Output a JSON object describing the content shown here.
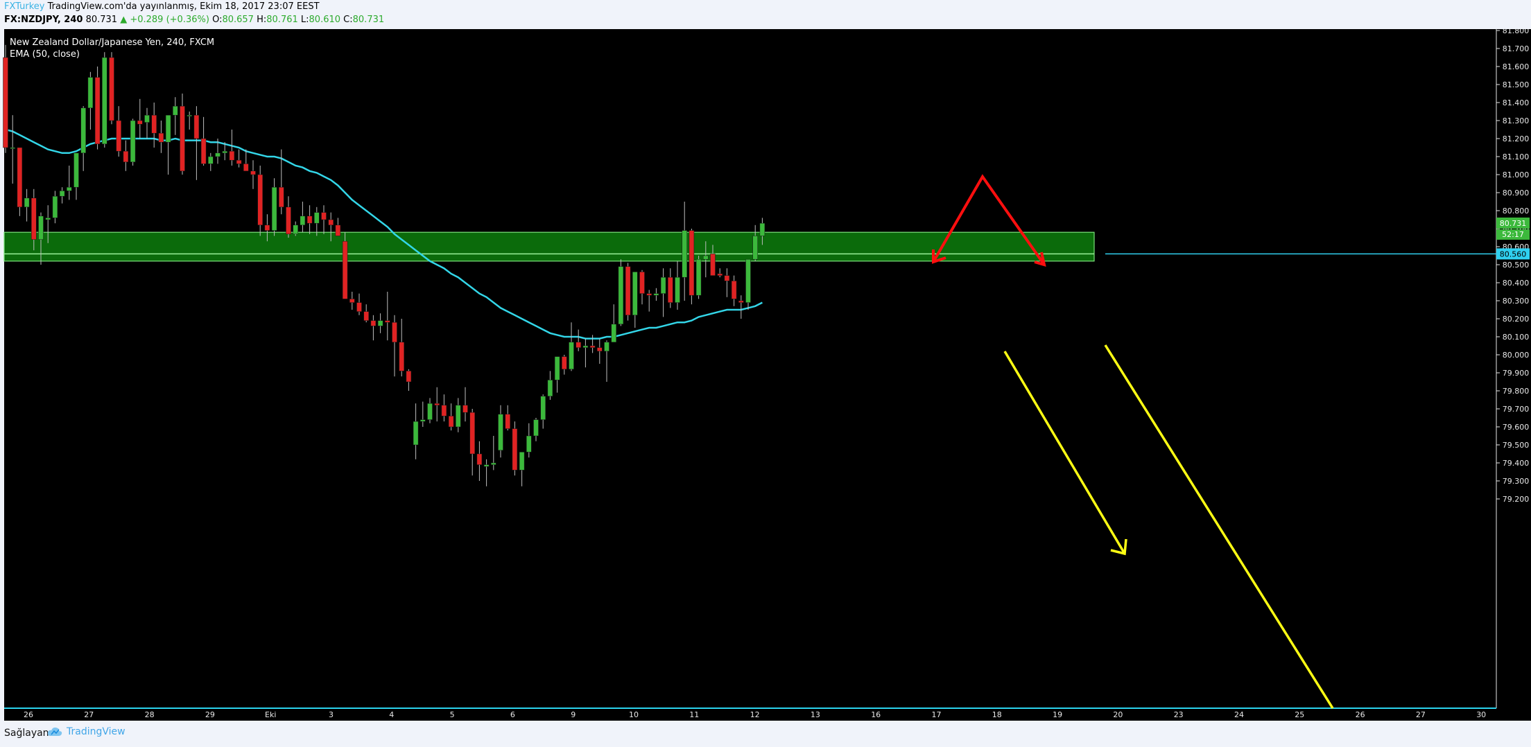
{
  "header": {
    "author": "FXTurkey",
    "published": "TradingView.com'da yayınlanmış, Ekim 18, 2017 23:07 EEST",
    "symbol": "FX:NZDJPY, 240",
    "last": "80.731",
    "change": "▲ +0.289 (+0.36%)",
    "o_label": "O:",
    "o": "80.657",
    "h_label": "H:",
    "h": "80.761",
    "l_label": "L:",
    "l": "80.610",
    "c_label": "C:",
    "c": "80.731"
  },
  "footer": {
    "source_label": "Sağlayan:",
    "brand": "TradingView"
  },
  "colors": {
    "background": "#000000",
    "up": "#3cb93c",
    "down": "#e02323",
    "ema": "#33d6e8",
    "zone_fill": "#0b6b0b",
    "zone_edge": "#7ce37c",
    "yellow": "#ffff14",
    "red_arrow": "#ff0f0f",
    "hline": "#2fd0f0"
  },
  "chart_data": {
    "type": "candlestick",
    "title": "New Zealand Dollar/Japanese Yen, 240, FXCM",
    "indicator": "EMA (50, close)",
    "ylim": [
      79.13,
      81.83
    ],
    "y_ticks": [
      "81.800",
      "81.700",
      "81.600",
      "81.500",
      "81.400",
      "81.300",
      "81.200",
      "81.100",
      "81.000",
      "80.900",
      "80.800",
      "80.700",
      "80.600",
      "80.500",
      "80.400",
      "80.300",
      "80.200",
      "80.100",
      "80.000",
      "79.900",
      "79.800",
      "79.700",
      "79.600",
      "79.500",
      "79.400",
      "79.300",
      "79.200"
    ],
    "x_ticks": [
      "26",
      "27",
      "28",
      "29",
      "Eki",
      "3",
      "4",
      "5",
      "6",
      "9",
      "10",
      "11",
      "12",
      "13",
      "16",
      "17",
      "18",
      "19",
      "20",
      "23",
      "24",
      "25",
      "26",
      "27",
      "30"
    ],
    "last_price_label": "80.731",
    "countdown_label": "52:17",
    "hline_label": "80.560",
    "candles": [
      [
        81.65,
        81.72,
        81.12,
        81.15
      ],
      [
        81.15,
        81.33,
        80.95,
        81.15
      ],
      [
        81.15,
        81.15,
        80.77,
        80.82
      ],
      [
        80.82,
        80.92,
        80.74,
        80.87
      ],
      [
        80.87,
        80.92,
        80.58,
        80.64
      ],
      [
        80.64,
        80.79,
        80.5,
        80.77
      ],
      [
        80.75,
        80.83,
        80.62,
        80.76
      ],
      [
        80.76,
        80.91,
        80.73,
        80.88
      ],
      [
        80.88,
        80.93,
        80.84,
        80.91
      ],
      [
        80.91,
        81.05,
        80.86,
        80.93
      ],
      [
        80.93,
        81.12,
        80.86,
        81.12
      ],
      [
        81.12,
        81.38,
        81.02,
        81.37
      ],
      [
        81.37,
        81.57,
        81.25,
        81.54
      ],
      [
        81.54,
        81.6,
        81.14,
        81.17
      ],
      [
        81.17,
        81.68,
        81.15,
        81.65
      ],
      [
        81.65,
        81.68,
        81.28,
        81.3
      ],
      [
        81.3,
        81.38,
        81.1,
        81.13
      ],
      [
        81.13,
        81.19,
        81.02,
        81.07
      ],
      [
        81.07,
        81.31,
        81.05,
        81.3
      ],
      [
        81.3,
        81.42,
        81.2,
        81.28
      ],
      [
        81.29,
        81.37,
        81.2,
        81.33
      ],
      [
        81.33,
        81.4,
        81.15,
        81.23
      ],
      [
        81.23,
        81.3,
        81.12,
        81.18
      ],
      [
        81.18,
        81.33,
        81.0,
        81.33
      ],
      [
        81.33,
        81.43,
        81.22,
        81.38
      ],
      [
        81.38,
        81.45,
        81.0,
        81.02
      ],
      [
        81.33,
        81.35,
        81.25,
        81.33
      ],
      [
        81.33,
        81.38,
        80.97,
        81.2
      ],
      [
        81.2,
        81.32,
        81.05,
        81.06
      ],
      [
        81.06,
        81.12,
        81.02,
        81.1
      ],
      [
        81.1,
        81.2,
        81.06,
        81.12
      ],
      [
        81.12,
        81.18,
        81.08,
        81.13
      ],
      [
        81.13,
        81.25,
        81.05,
        81.08
      ],
      [
        81.08,
        81.14,
        81.04,
        81.06
      ],
      [
        81.06,
        81.14,
        81.03,
        81.02
      ],
      [
        81.02,
        81.08,
        80.92,
        81.0
      ],
      [
        81.0,
        81.05,
        80.66,
        80.72
      ],
      [
        80.72,
        80.78,
        80.63,
        80.69
      ],
      [
        80.69,
        80.98,
        80.66,
        80.93
      ],
      [
        80.93,
        81.14,
        80.78,
        80.82
      ],
      [
        80.82,
        80.88,
        80.65,
        80.67
      ],
      [
        80.67,
        80.74,
        80.66,
        80.72
      ],
      [
        80.72,
        80.85,
        80.68,
        80.77
      ],
      [
        80.77,
        80.83,
        80.67,
        80.73
      ],
      [
        80.73,
        80.82,
        80.66,
        80.79
      ],
      [
        80.79,
        80.83,
        80.67,
        80.75
      ],
      [
        80.75,
        80.79,
        80.63,
        80.72
      ],
      [
        80.72,
        80.76,
        80.66,
        80.66
      ],
      [
        80.63,
        80.68,
        80.31,
        80.31
      ],
      [
        80.31,
        80.35,
        80.25,
        80.29
      ],
      [
        80.29,
        80.34,
        80.22,
        80.24
      ],
      [
        80.24,
        80.28,
        80.18,
        80.19
      ],
      [
        80.19,
        80.22,
        80.08,
        80.16
      ],
      [
        80.16,
        80.23,
        80.12,
        80.19
      ],
      [
        80.19,
        80.35,
        80.08,
        80.18
      ],
      [
        80.18,
        80.22,
        79.88,
        80.07
      ],
      [
        80.07,
        80.2,
        79.88,
        79.91
      ],
      [
        79.91,
        79.92,
        79.8,
        79.85
      ],
      [
        79.5,
        79.73,
        79.42,
        79.63
      ],
      [
        79.63,
        79.74,
        79.6,
        79.64
      ],
      [
        79.64,
        79.76,
        79.62,
        79.73
      ],
      [
        79.73,
        79.82,
        79.63,
        79.72
      ],
      [
        79.72,
        79.78,
        79.63,
        79.66
      ],
      [
        79.66,
        79.73,
        79.58,
        79.6
      ],
      [
        79.6,
        79.76,
        79.57,
        79.72
      ],
      [
        79.72,
        79.82,
        79.63,
        79.68
      ],
      [
        79.68,
        79.7,
        79.33,
        79.45
      ],
      [
        79.45,
        79.52,
        79.3,
        79.39
      ],
      [
        79.38,
        79.42,
        79.27,
        79.39
      ],
      [
        79.39,
        79.55,
        79.36,
        79.4
      ],
      [
        79.47,
        79.72,
        79.43,
        79.67
      ],
      [
        79.67,
        79.72,
        79.58,
        79.59
      ],
      [
        79.59,
        79.63,
        79.33,
        79.36
      ],
      [
        79.36,
        79.45,
        79.27,
        79.46
      ],
      [
        79.46,
        79.62,
        79.43,
        79.55
      ],
      [
        79.55,
        79.65,
        79.52,
        79.64
      ],
      [
        79.64,
        79.78,
        79.59,
        79.77
      ],
      [
        79.77,
        79.91,
        79.75,
        79.86
      ],
      [
        79.86,
        79.97,
        79.79,
        79.99
      ],
      [
        79.99,
        80.0,
        79.89,
        79.92
      ],
      [
        79.92,
        80.18,
        79.91,
        80.07
      ],
      [
        80.07,
        80.14,
        80.02,
        80.04
      ],
      [
        80.04,
        80.09,
        79.93,
        80.05
      ],
      [
        80.05,
        80.11,
        80.01,
        80.04
      ],
      [
        80.04,
        80.09,
        79.95,
        80.02
      ],
      [
        80.02,
        80.08,
        79.85,
        80.07
      ],
      [
        80.07,
        80.28,
        80.07,
        80.17
      ],
      [
        80.17,
        80.53,
        80.16,
        80.49
      ],
      [
        80.49,
        80.51,
        80.19,
        80.22
      ],
      [
        80.22,
        80.44,
        80.15,
        80.46
      ],
      [
        80.46,
        80.47,
        80.28,
        80.34
      ],
      [
        80.34,
        80.36,
        80.24,
        80.33
      ],
      [
        80.33,
        80.37,
        80.3,
        80.34
      ],
      [
        80.34,
        80.48,
        80.21,
        80.43
      ],
      [
        80.43,
        80.48,
        80.26,
        80.29
      ],
      [
        80.29,
        80.52,
        80.25,
        80.43
      ],
      [
        80.43,
        80.85,
        80.3,
        80.69
      ],
      [
        80.69,
        80.7,
        80.28,
        80.33
      ],
      [
        80.33,
        80.55,
        80.31,
        80.53
      ],
      [
        80.53,
        80.63,
        80.43,
        80.55
      ],
      [
        80.56,
        80.61,
        80.45,
        80.44
      ],
      [
        80.45,
        80.48,
        80.43,
        80.44
      ],
      [
        80.44,
        80.48,
        80.32,
        80.41
      ],
      [
        80.41,
        80.44,
        80.27,
        80.31
      ],
      [
        80.3,
        80.33,
        80.2,
        80.29
      ],
      [
        80.29,
        80.53,
        80.25,
        80.53
      ],
      [
        80.53,
        80.72,
        80.52,
        80.66
      ],
      [
        80.66,
        80.76,
        80.61,
        80.73
      ]
    ],
    "ema": [
      81.25,
      81.24,
      81.22,
      81.2,
      81.18,
      81.16,
      81.14,
      81.13,
      81.12,
      81.12,
      81.13,
      81.15,
      81.17,
      81.18,
      81.19,
      81.2,
      81.2,
      81.2,
      81.2,
      81.2,
      81.2,
      81.2,
      81.19,
      81.19,
      81.2,
      81.19,
      81.19,
      81.19,
      81.19,
      81.18,
      81.18,
      81.17,
      81.16,
      81.15,
      81.13,
      81.12,
      81.11,
      81.1,
      81.1,
      81.09,
      81.07,
      81.05,
      81.04,
      81.02,
      81.01,
      80.99,
      80.97,
      80.94,
      80.9,
      80.86,
      80.83,
      80.8,
      80.77,
      80.74,
      80.71,
      80.67,
      80.64,
      80.61,
      80.58,
      80.55,
      80.52,
      80.5,
      80.48,
      80.45,
      80.43,
      80.4,
      80.37,
      80.34,
      80.32,
      80.29,
      80.26,
      80.24,
      80.22,
      80.2,
      80.18,
      80.16,
      80.14,
      80.12,
      80.11,
      80.1,
      80.1,
      80.1,
      80.09,
      80.09,
      80.09,
      80.1,
      80.1,
      80.11,
      80.12,
      80.13,
      80.14,
      80.15,
      80.15,
      80.16,
      80.17,
      80.18,
      80.18,
      80.19,
      80.21,
      80.22,
      80.23,
      80.24,
      80.25,
      80.25,
      80.25,
      80.26,
      80.27,
      80.29
    ],
    "zone": {
      "top": 80.68,
      "bottom": 80.52,
      "mid_line": 80.56
    }
  }
}
